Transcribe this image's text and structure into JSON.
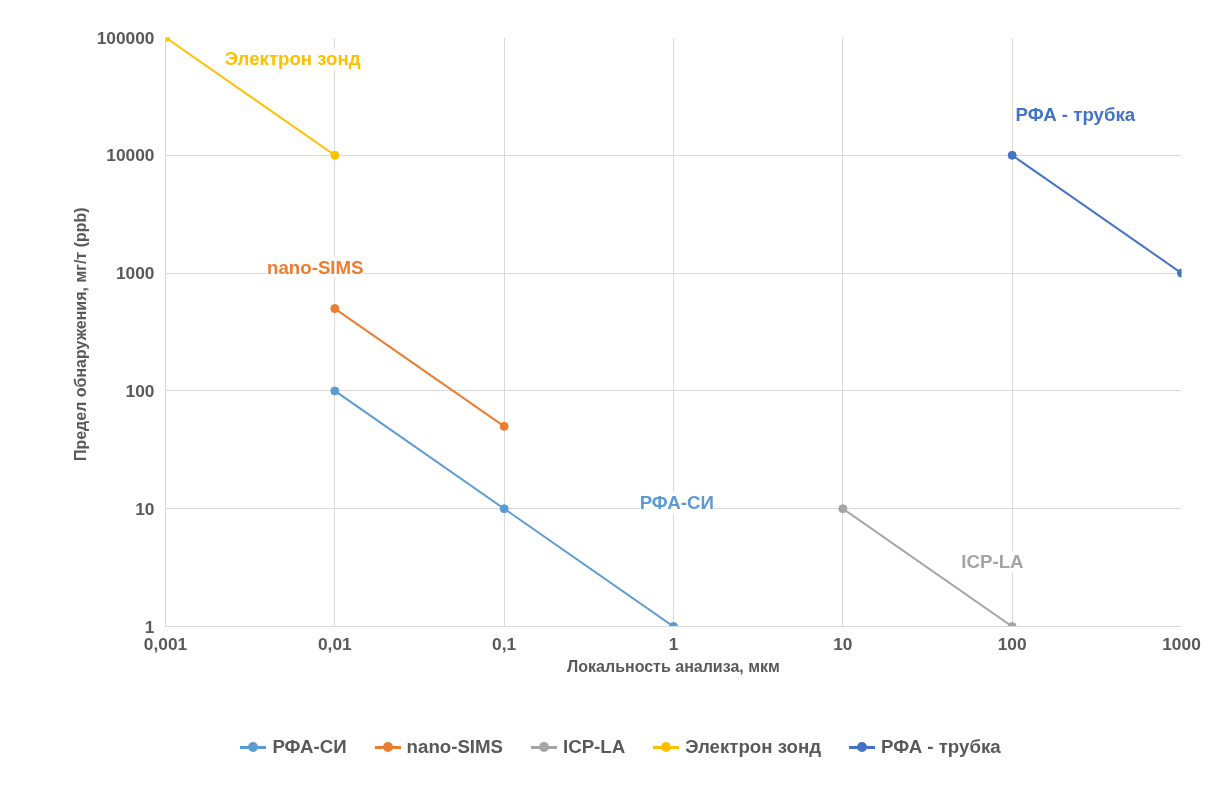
{
  "chart_data": {
    "type": "line",
    "xlabel": "Локальность анализа, мкм",
    "ylabel": "Предел обнаружения, мг/т  (ppb)",
    "log": "xy",
    "grid": true,
    "legend": "bottom",
    "marker": "circle",
    "line_style": "solid",
    "xlim": [
      0.001,
      1000
    ],
    "ylim": [
      1,
      100000
    ],
    "xticks": [
      {
        "value": 0.001,
        "label": "0,001"
      },
      {
        "value": 0.01,
        "label": "0,01"
      },
      {
        "value": 0.1,
        "label": "0,1"
      },
      1,
      10,
      100,
      1000
    ],
    "yticks": [
      1,
      10,
      100,
      1000,
      10000,
      100000
    ],
    "series": [
      {
        "name": "РФА-СИ",
        "color": "#5b9bd5",
        "x": [
          0.01,
          0.1,
          1
        ],
        "values": [
          100,
          10,
          1
        ]
      },
      {
        "name": "nano-SIMS",
        "color": "#ed7d31",
        "x": [
          0.01,
          0.1
        ],
        "values": [
          500,
          50
        ]
      },
      {
        "name": "ICP-LA",
        "color": "#a5a5a5",
        "x": [
          10,
          100
        ],
        "values": [
          10,
          1
        ]
      },
      {
        "name": "Электрон зонд",
        "color": "#ffc000",
        "x": [
          0.001,
          0.01
        ],
        "values": [
          100000,
          10000
        ]
      },
      {
        "name": "РФА - трубка",
        "color": "#4472c4",
        "x": [
          100,
          1000
        ],
        "values": [
          10000,
          1000
        ]
      }
    ]
  }
}
